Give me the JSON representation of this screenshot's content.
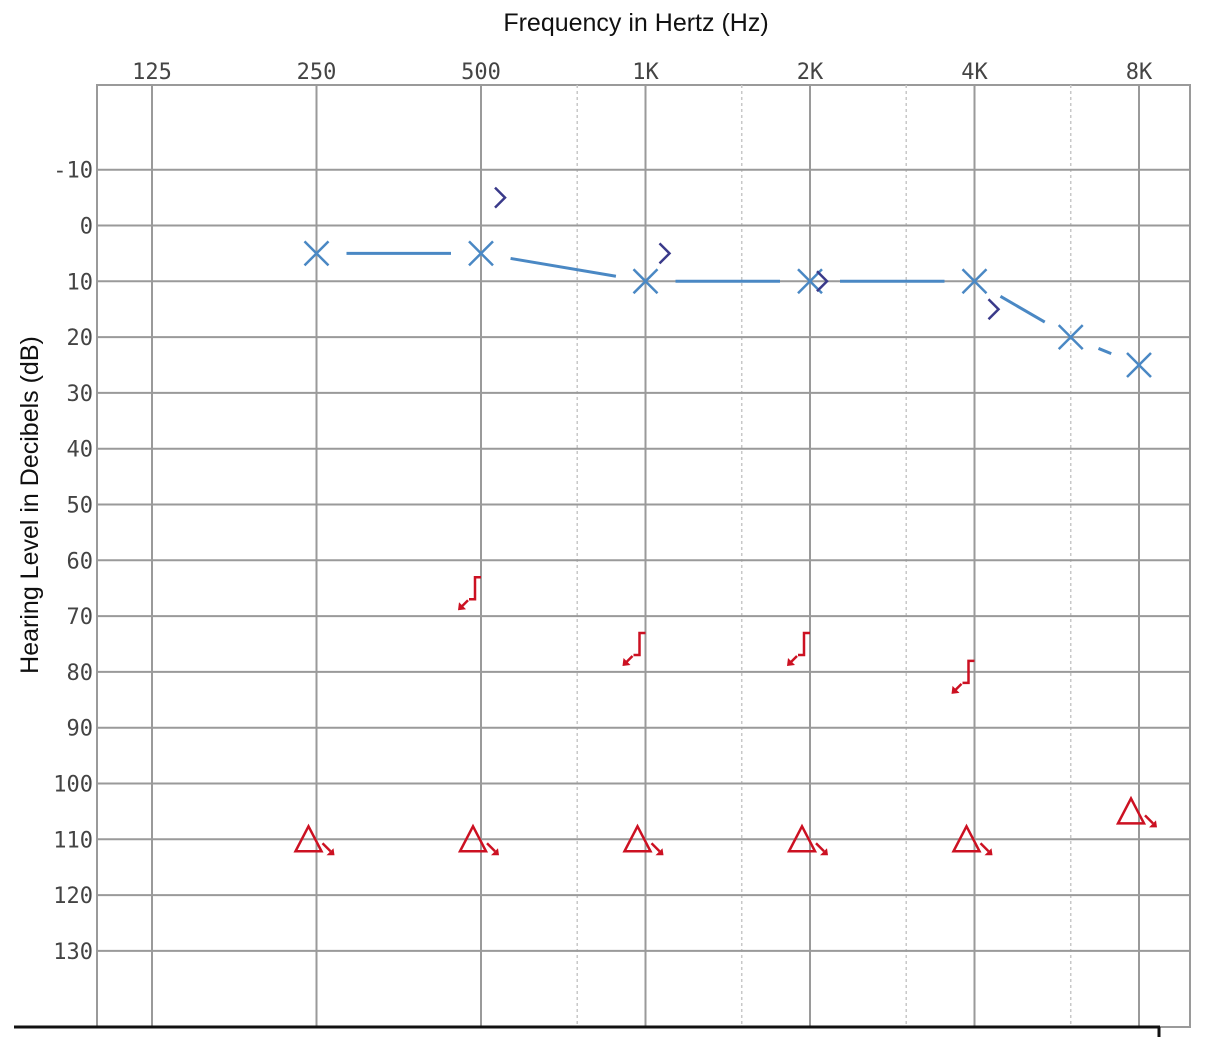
{
  "chart_data": {
    "type": "scatter",
    "title": "",
    "xlabel": "Frequency in Hertz (Hz)",
    "ylabel": "Hearing Level in Decibels (dB)",
    "x_scale": "log2",
    "x_ticks": [
      {
        "hz": 125,
        "label": "125"
      },
      {
        "hz": 250,
        "label": "250"
      },
      {
        "hz": 500,
        "label": "500"
      },
      {
        "hz": 1000,
        "label": "1K"
      },
      {
        "hz": 2000,
        "label": "2K"
      },
      {
        "hz": 4000,
        "label": "4K"
      },
      {
        "hz": 8000,
        "label": "8K"
      }
    ],
    "x_minor_ticks": [
      750,
      1500,
      3000,
      6000
    ],
    "y_ticks": [
      -10,
      0,
      10,
      20,
      30,
      40,
      50,
      60,
      70,
      80,
      90,
      100,
      110,
      120,
      130
    ],
    "ylim": [
      -25,
      145
    ],
    "y_inverted": true,
    "grid": true,
    "colors": {
      "blue": "#4a88c4",
      "navy": "#3a3a8a",
      "red": "#cc1122"
    },
    "series": [
      {
        "symbol": "X",
        "connected": true,
        "color": "#4a88c4",
        "points": [
          [
            250,
            5
          ],
          [
            500,
            5
          ],
          [
            1000,
            10
          ],
          [
            2000,
            10
          ],
          [
            4000,
            10
          ],
          [
            6000,
            20
          ],
          [
            8000,
            25
          ]
        ]
      },
      {
        "symbol": ">",
        "color": "#3a3a8a",
        "points": [
          [
            500,
            -5
          ],
          [
            1000,
            5
          ],
          [
            2000,
            10
          ],
          [
            4000,
            15
          ]
        ]
      },
      {
        "symbol": "[ no response",
        "color": "#cc1122",
        "points": [
          [
            500,
            65
          ],
          [
            1000,
            75
          ],
          [
            2000,
            75
          ],
          [
            4000,
            80
          ]
        ]
      },
      {
        "symbol": "triangle no response",
        "color": "#cc1122",
        "points": [
          [
            250,
            110
          ],
          [
            500,
            110
          ],
          [
            1000,
            110
          ],
          [
            2000,
            110
          ],
          [
            4000,
            110
          ],
          [
            8000,
            105
          ]
        ]
      }
    ]
  }
}
